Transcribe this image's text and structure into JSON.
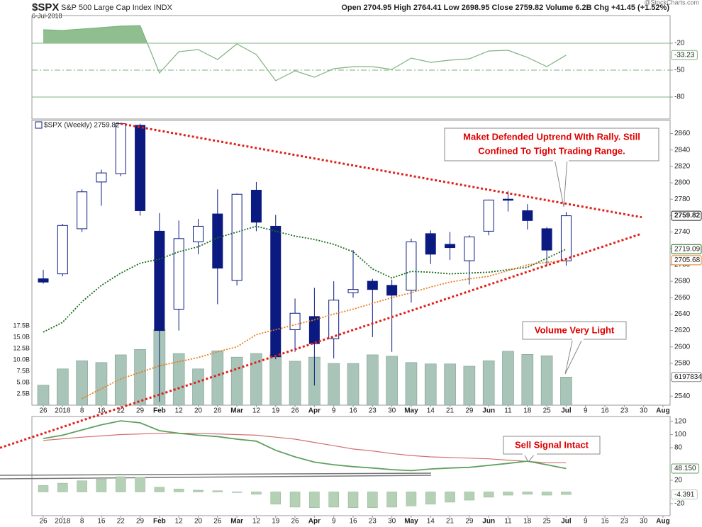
{
  "header": {
    "symbol": "$SPX",
    "name": "S&P 500 Large Cap Index INDX",
    "date": "6-Jul-2018",
    "quote": "Open 2704.95 High 2764.41 Low 2698.95 Close 2759.82 Volume 6.2B Chg +41.45 (+1.52%)",
    "credit": "@StockCharts.com"
  },
  "chart_data": [
    {
      "type": "line",
      "ylim": [
        -104.5,
        10.8
      ],
      "yticks": [
        -20,
        -50,
        -80
      ],
      "grid": true,
      "fill_above": -20,
      "series": [
        {
          "color": "#7fb27f",
          "end_label": "-33.23",
          "values": [
            -5,
            -5.8,
            -4.2,
            -2.6,
            -1,
            -0.3,
            -53.2,
            -29.5,
            -27.1,
            -38.2,
            -20.8,
            -32.6,
            -61.8,
            -50.8,
            -57.9,
            -48.4,
            -46.1,
            -46.1,
            -49.2,
            -36.6,
            -41.3,
            -38.9,
            -37.4,
            -28.7,
            -27.9,
            -35.8,
            -46.1,
            -33.23,
            null,
            null,
            null,
            null,
            null
          ]
        }
      ]
    },
    {
      "type": "candlestick",
      "legend_label": "$SPX (Weekly) 2759.82",
      "close_label": "2759.82",
      "categories": [
        "26",
        "2018",
        "8",
        "16",
        "22",
        "29",
        "Feb",
        "12",
        "20",
        "26",
        "Mar",
        "12",
        "19",
        "26",
        "Apr",
        "9",
        "16",
        "23",
        "30",
        "May",
        "14",
        "21",
        "29",
        "Jun",
        "11",
        "18",
        "25",
        "Jul",
        "9",
        "16",
        "23",
        "30",
        "Aug"
      ],
      "ylim": [
        2529,
        2876
      ],
      "yticks": [
        2540,
        2560,
        2580,
        2600,
        2620,
        2640,
        2660,
        2680,
        2700,
        2720,
        2740,
        2760,
        2780,
        2800,
        2820,
        2840,
        2860
      ],
      "up_color": "#ffffff",
      "down_color": "#0a1a80",
      "open": [
        2683,
        2689,
        2744,
        2801,
        2811,
        2870,
        2741,
        2646,
        2728,
        2762,
        2681,
        2791,
        2747,
        2621,
        2637,
        2610,
        2666,
        2680,
        2675,
        2669,
        2738,
        2725,
        2705,
        2741,
        2780,
        2766,
        2744,
        2704.95,
        null,
        null,
        null,
        null,
        null
      ],
      "high": [
        2694,
        2750,
        2792,
        2816,
        2873,
        2872,
        2763,
        2754,
        2756,
        2792,
        2787,
        2801,
        2761,
        2659,
        2672,
        2680,
        2718,
        2683,
        2682,
        2732,
        2742,
        2740,
        2736,
        2779.5,
        2790,
        2774,
        2746,
        2764.41,
        null,
        null,
        null,
        null,
        null
      ],
      "low": [
        2677,
        2686,
        2740,
        2772,
        2808,
        2760,
        2533,
        2620,
        2713,
        2652,
        2675,
        2741,
        2585,
        2594,
        2553,
        2586,
        2660,
        2612,
        2594,
        2654,
        2701,
        2706,
        2676,
        2736,
        2765,
        2743,
        2698,
        2698.95,
        null,
        null,
        null,
        null,
        null
      ],
      "close": [
        2679,
        2748,
        2789,
        2812,
        2872,
        2766,
        2620,
        2732,
        2747,
        2696,
        2786,
        2752,
        2588,
        2641,
        2604,
        2657,
        2670,
        2670,
        2663,
        2728,
        2713,
        2721,
        2734,
        2779,
        2779,
        2754,
        2718,
        2759.82,
        null,
        null,
        null,
        null,
        null
      ],
      "volume": {
        "color": "#a9c4b8",
        "ylim": [
          0,
          62.8
        ],
        "end_label": "6197834",
        "yticks": [
          {
            "value": 2.5,
            "label": "2.5B"
          },
          {
            "value": 5,
            "label": "5.0B"
          },
          {
            "value": 7.5,
            "label": "7.5B"
          },
          {
            "value": 10,
            "label": "10.0B"
          },
          {
            "value": 12.5,
            "label": "12.5B"
          },
          {
            "value": 15,
            "label": "15.0B"
          },
          {
            "value": 17.5,
            "label": "17.5B"
          }
        ],
        "values": [
          4.4,
          8.0,
          9.8,
          9.4,
          11.1,
          12.3,
          16.7,
          11.4,
          8.0,
          12.0,
          10.6,
          11.4,
          11.2,
          9.7,
          10.6,
          9.2,
          9.2,
          11.1,
          10.8,
          9.4,
          9.1,
          9.1,
          8.6,
          9.8,
          11.9,
          11.2,
          10.9,
          6.2,
          null,
          null,
          null,
          null,
          null
        ]
      },
      "series": [
        {
          "color": "#1a6b1a",
          "end_label": "2719.09",
          "values": [
            2618,
            2630,
            2655,
            2675,
            2690,
            2702,
            2707,
            2716,
            2722,
            2733,
            2740,
            2747,
            2741,
            2735,
            2731,
            2725,
            2716,
            2695,
            2684,
            2692,
            2691,
            2689,
            2690,
            2691,
            2694,
            2697,
            2708,
            2719.09,
            null,
            null,
            null,
            null,
            null
          ]
        },
        {
          "color": "#e87d1e",
          "end_label": "2705.68",
          "values": [
            null,
            null,
            2537,
            2549,
            2561,
            2569,
            2577,
            2582,
            2587,
            2594,
            2600,
            2615,
            2621,
            2627,
            2633,
            2640,
            2646,
            2653,
            2660,
            2666,
            2673,
            2679,
            2683,
            2686,
            2693,
            2700,
            2703,
            2705.68,
            null,
            null,
            null,
            null,
            null
          ]
        }
      ],
      "trendlines": [
        {
          "color": "#e0201a",
          "start_x": 4,
          "start_y": 2872,
          "end_x": 30.9,
          "end_y": 2758
        },
        {
          "color": "#e0201a",
          "start_x": -2.23,
          "start_y": 2477,
          "end_x": 30.9,
          "end_y": 2738
        }
      ],
      "annotations": [
        {
          "lines": [
            "Maket Defended Uptrend WIth Rally. Still",
            "Confined To Tight Trading Range."
          ]
        },
        {
          "lines": [
            "Volume Very Light"
          ]
        }
      ]
    },
    {
      "type": "line",
      "categories": [
        "26",
        "2018",
        "8",
        "16",
        "22",
        "29",
        "Feb",
        "12",
        "20",
        "26",
        "Mar",
        "12",
        "19",
        "26",
        "Apr",
        "9",
        "16",
        "23",
        "30",
        "May",
        "14",
        "21",
        "29",
        "Jun",
        "11",
        "18",
        "25",
        "Jul",
        "9",
        "16",
        "23",
        "30",
        "Aug"
      ],
      "ylim": [
        -23.8,
        127.6
      ],
      "yticks": [
        120,
        100,
        80
      ],
      "y2lim": [
        -40.6,
        129
      ],
      "y2ticks": [
        20,
        -20
      ],
      "series": [
        {
          "type": "bar",
          "axis": "y2",
          "color": "#b5d1b5",
          "end_label": "-4.391",
          "values": [
            11,
            15,
            19,
            22,
            26,
            25,
            8,
            5,
            3,
            2,
            -1,
            -4,
            -21,
            -26,
            -27,
            -26,
            -27,
            -27,
            -26,
            -24,
            -21,
            -17.5,
            -14,
            -9,
            -5.5,
            -4,
            -5.5,
            -4.391,
            null,
            null,
            null,
            null,
            null
          ]
        },
        {
          "color": "#d27070",
          "values": [
            91,
            93.5,
            96,
            98,
            100,
            101,
            102,
            102,
            102,
            101,
            100,
            99,
            96,
            93,
            88,
            83,
            78,
            75,
            71,
            68,
            66,
            65,
            64,
            63,
            61,
            59,
            57,
            57,
            null,
            null,
            null,
            null,
            null
          ]
        },
        {
          "color": "#5fa05f",
          "end_label": "48.150",
          "values": [
            94,
            99,
            107,
            115,
            121,
            118,
            106,
            102,
            99,
            97,
            93,
            90,
            76,
            66,
            58,
            54,
            51,
            49,
            46.5,
            45,
            47.5,
            49,
            50,
            53,
            56,
            59.5,
            54,
            48.15,
            null,
            null,
            null,
            null,
            null
          ]
        }
      ],
      "annotations": [
        {
          "lines": [
            "Sell Signal Intact"
          ]
        }
      ]
    }
  ]
}
